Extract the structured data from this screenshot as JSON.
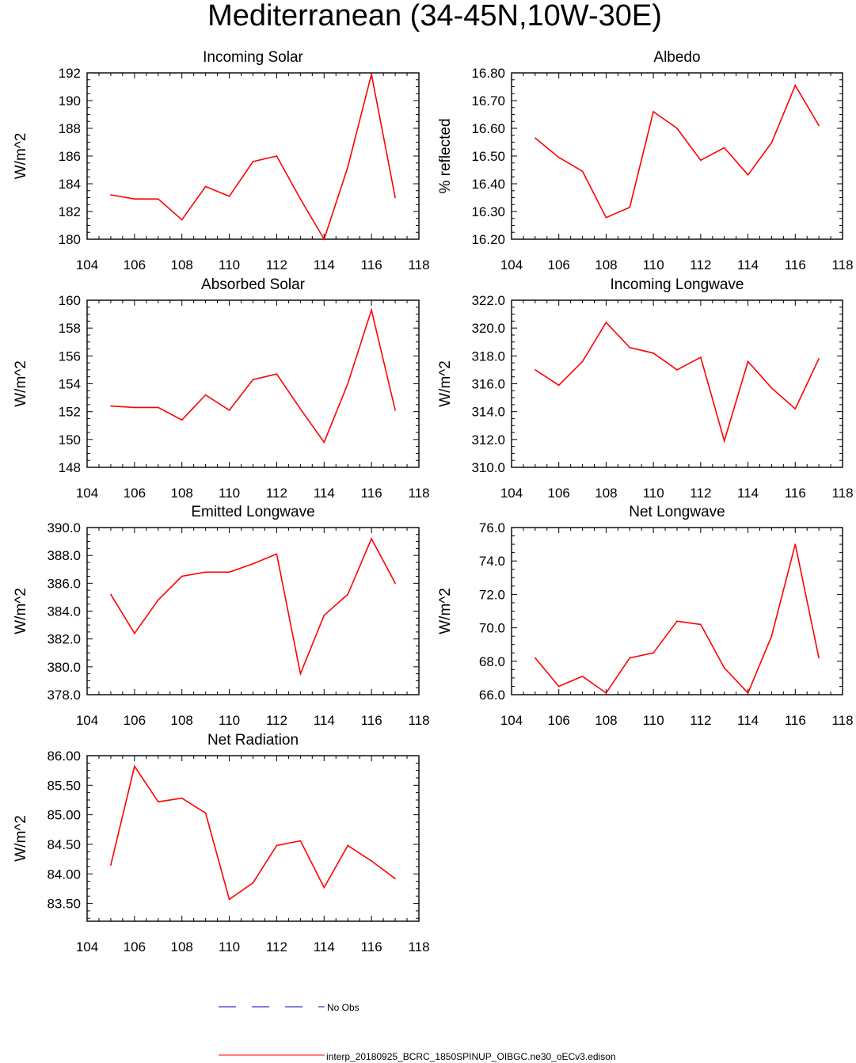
{
  "title": "Mediterranean (34-45N,10W-30E)",
  "colors": {
    "model": "#ff0000",
    "obs": "#0000cc"
  },
  "legend": {
    "obs_label": "No Obs",
    "model_label": "interp_20180925_BCRC_1850SPINUP_OIBGC.ne30_oECv3.edison"
  },
  "chart_data": [
    {
      "type": "line",
      "title": "Incoming Solar",
      "ylabel": "W/m^2",
      "xlim": [
        104,
        118
      ],
      "ylim": [
        180,
        192
      ],
      "xticks": [
        104,
        106,
        108,
        110,
        112,
        114,
        116,
        118
      ],
      "yticks": [
        180,
        182,
        184,
        186,
        188,
        190,
        192
      ],
      "ytick_labels": [
        "180",
        "182",
        "184",
        "186",
        "188",
        "190",
        "192"
      ],
      "x": [
        105,
        106,
        107,
        108,
        109,
        110,
        111,
        112,
        113,
        114,
        115,
        116,
        117
      ],
      "series": [
        {
          "name": "interp_20180925_BCRC_1850SPINUP_OIBGC.ne30_oECv3.edison",
          "values": [
            183.2,
            182.9,
            182.9,
            181.4,
            183.8,
            183.1,
            185.6,
            186.0,
            182.9,
            180.0,
            185.2,
            191.9,
            183.0
          ]
        }
      ]
    },
    {
      "type": "line",
      "title": "Albedo",
      "ylabel": "% reflected",
      "xlim": [
        104,
        118
      ],
      "ylim": [
        16.2,
        16.8
      ],
      "xticks": [
        104,
        106,
        108,
        110,
        112,
        114,
        116,
        118
      ],
      "yticks": [
        16.2,
        16.3,
        16.4,
        16.5,
        16.6,
        16.7,
        16.8
      ],
      "ytick_labels": [
        "16.20",
        "16.30",
        "16.40",
        "16.50",
        "16.60",
        "16.70",
        "16.80"
      ],
      "x": [
        105,
        106,
        107,
        108,
        109,
        110,
        111,
        112,
        113,
        114,
        115,
        116,
        117
      ],
      "series": [
        {
          "name": "interp_20180925_BCRC_1850SPINUP_OIBGC.ne30_oECv3.edison",
          "values": [
            16.565,
            16.495,
            16.445,
            16.278,
            16.315,
            16.66,
            16.6,
            16.485,
            16.53,
            16.432,
            16.548,
            16.755,
            16.61
          ]
        }
      ]
    },
    {
      "type": "line",
      "title": "Absorbed Solar",
      "ylabel": "W/m^2",
      "xlim": [
        104,
        118
      ],
      "ylim": [
        148,
        160
      ],
      "xticks": [
        104,
        106,
        108,
        110,
        112,
        114,
        116,
        118
      ],
      "yticks": [
        148,
        150,
        152,
        154,
        156,
        158,
        160
      ],
      "ytick_labels": [
        "148",
        "150",
        "152",
        "154",
        "156",
        "158",
        "160"
      ],
      "x": [
        105,
        106,
        107,
        108,
        109,
        110,
        111,
        112,
        113,
        114,
        115,
        116,
        117
      ],
      "series": [
        {
          "name": "interp_20180925_BCRC_1850SPINUP_OIBGC.ne30_oECv3.edison",
          "values": [
            152.4,
            152.3,
            152.3,
            151.4,
            153.2,
            152.1,
            154.3,
            154.7,
            152.2,
            149.8,
            154.0,
            159.3,
            152.1
          ]
        }
      ]
    },
    {
      "type": "line",
      "title": "Incoming Longwave",
      "ylabel": "W/m^2",
      "xlim": [
        104,
        118
      ],
      "ylim": [
        310,
        322
      ],
      "xticks": [
        104,
        106,
        108,
        110,
        112,
        114,
        116,
        118
      ],
      "yticks": [
        310,
        312,
        314,
        316,
        318,
        320,
        322
      ],
      "ytick_labels": [
        "310.0",
        "312.0",
        "314.0",
        "316.0",
        "318.0",
        "320.0",
        "322.0"
      ],
      "x": [
        105,
        106,
        107,
        108,
        109,
        110,
        111,
        112,
        113,
        114,
        115,
        116,
        117
      ],
      "series": [
        {
          "name": "interp_20180925_BCRC_1850SPINUP_OIBGC.ne30_oECv3.edison",
          "values": [
            317.0,
            315.9,
            317.6,
            320.4,
            318.6,
            318.2,
            317.0,
            317.9,
            311.9,
            317.6,
            315.7,
            314.2,
            317.8
          ]
        }
      ]
    },
    {
      "type": "line",
      "title": "Emitted Longwave",
      "ylabel": "W/m^2",
      "xlim": [
        104,
        118
      ],
      "ylim": [
        378,
        390
      ],
      "xticks": [
        104,
        106,
        108,
        110,
        112,
        114,
        116,
        118
      ],
      "yticks": [
        378,
        380,
        382,
        384,
        386,
        388,
        390
      ],
      "ytick_labels": [
        "378.0",
        "380.0",
        "382.0",
        "384.0",
        "386.0",
        "388.0",
        "390.0"
      ],
      "x": [
        105,
        106,
        107,
        108,
        109,
        110,
        111,
        112,
        113,
        114,
        115,
        116,
        117
      ],
      "series": [
        {
          "name": "interp_20180925_BCRC_1850SPINUP_OIBGC.ne30_oECv3.edison",
          "values": [
            385.2,
            382.4,
            384.8,
            386.5,
            386.8,
            386.8,
            387.4,
            388.1,
            379.5,
            383.7,
            385.2,
            389.2,
            386.0
          ]
        }
      ]
    },
    {
      "type": "line",
      "title": "Net Longwave",
      "ylabel": "W/m^2",
      "xlim": [
        104,
        118
      ],
      "ylim": [
        66,
        76
      ],
      "xticks": [
        104,
        106,
        108,
        110,
        112,
        114,
        116,
        118
      ],
      "yticks": [
        66,
        68,
        70,
        72,
        74,
        76
      ],
      "ytick_labels": [
        "66.0",
        "68.0",
        "70.0",
        "72.0",
        "74.0",
        "76.0"
      ],
      "x": [
        105,
        106,
        107,
        108,
        109,
        110,
        111,
        112,
        113,
        114,
        115,
        116,
        117
      ],
      "series": [
        {
          "name": "interp_20180925_BCRC_1850SPINUP_OIBGC.ne30_oECv3.edison",
          "values": [
            68.2,
            66.5,
            67.1,
            66.1,
            68.2,
            68.5,
            70.4,
            70.2,
            67.6,
            66.1,
            69.5,
            75.0,
            68.2
          ]
        }
      ]
    },
    {
      "type": "line",
      "title": "Net Radiation",
      "ylabel": "W/m^2",
      "xlim": [
        104,
        118
      ],
      "ylim": [
        83.2,
        86.0
      ],
      "xticks": [
        104,
        106,
        108,
        110,
        112,
        114,
        116,
        118
      ],
      "yticks": [
        83.5,
        84.0,
        84.5,
        85.0,
        85.5,
        86.0
      ],
      "ytick_labels": [
        "83.50",
        "84.00",
        "84.50",
        "85.00",
        "85.50",
        "86.00"
      ],
      "x": [
        105,
        106,
        107,
        108,
        109,
        110,
        111,
        112,
        113,
        114,
        115,
        116,
        117
      ],
      "series": [
        {
          "name": "interp_20180925_BCRC_1850SPINUP_OIBGC.ne30_oECv3.edison",
          "values": [
            84.15,
            85.82,
            85.22,
            85.28,
            85.03,
            83.57,
            83.85,
            84.48,
            84.56,
            83.77,
            84.48,
            84.22,
            83.92
          ]
        }
      ]
    }
  ]
}
